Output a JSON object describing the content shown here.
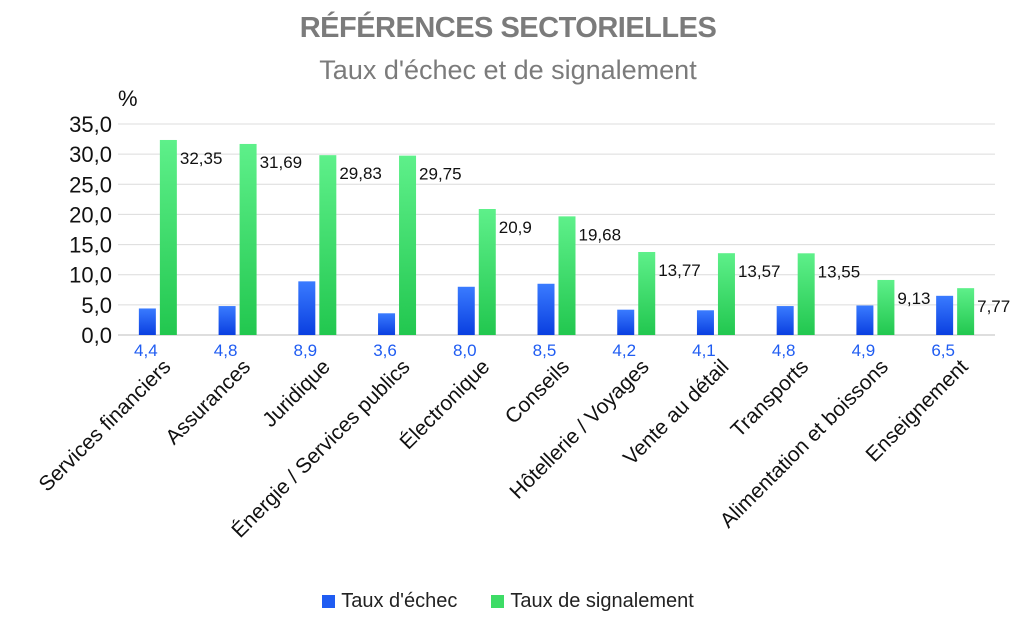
{
  "chart_data": {
    "type": "bar",
    "title": "RÉFÉRENCES SECTORIELLES",
    "subtitle": "Taux d'échec et de signalement",
    "ylabel": "%",
    "ylim": [
      0,
      35
    ],
    "yticks": [
      "0,0",
      "5,0",
      "10,0",
      "15,0",
      "20,0",
      "25,0",
      "30,0",
      "35,0"
    ],
    "grid": true,
    "legend_position": "bottom",
    "categories": [
      "Services financiers",
      "Assurances",
      "Juridique",
      "Énergie / Services publics",
      "Électronique",
      "Conseils",
      "Hôtellerie / Voyages",
      "Vente au détail",
      "Transports",
      "Alimentation et boissons",
      "Enseignement"
    ],
    "series": [
      {
        "name": "Taux d'échec",
        "color": "#1f5cf2",
        "values": [
          4.4,
          4.8,
          8.9,
          3.6,
          8.0,
          8.5,
          4.2,
          4.1,
          4.8,
          4.9,
          6.5
        ],
        "labels": [
          "4,4",
          "4,8",
          "8,9",
          "3,6",
          "8,0",
          "8,5",
          "4,2",
          "4,1",
          "4,8",
          "4,9",
          "6,5"
        ]
      },
      {
        "name": "Taux de signalement",
        "color": "#3ddc66",
        "values": [
          32.35,
          31.69,
          29.83,
          29.75,
          20.9,
          19.68,
          13.77,
          13.57,
          13.55,
          9.13,
          7.77
        ],
        "labels": [
          "32,35",
          "31,69",
          "29,83",
          "29,75",
          "20,9",
          "19,68",
          "13,77",
          "13,57",
          "13,55",
          "9,13",
          "7,77"
        ]
      }
    ]
  }
}
